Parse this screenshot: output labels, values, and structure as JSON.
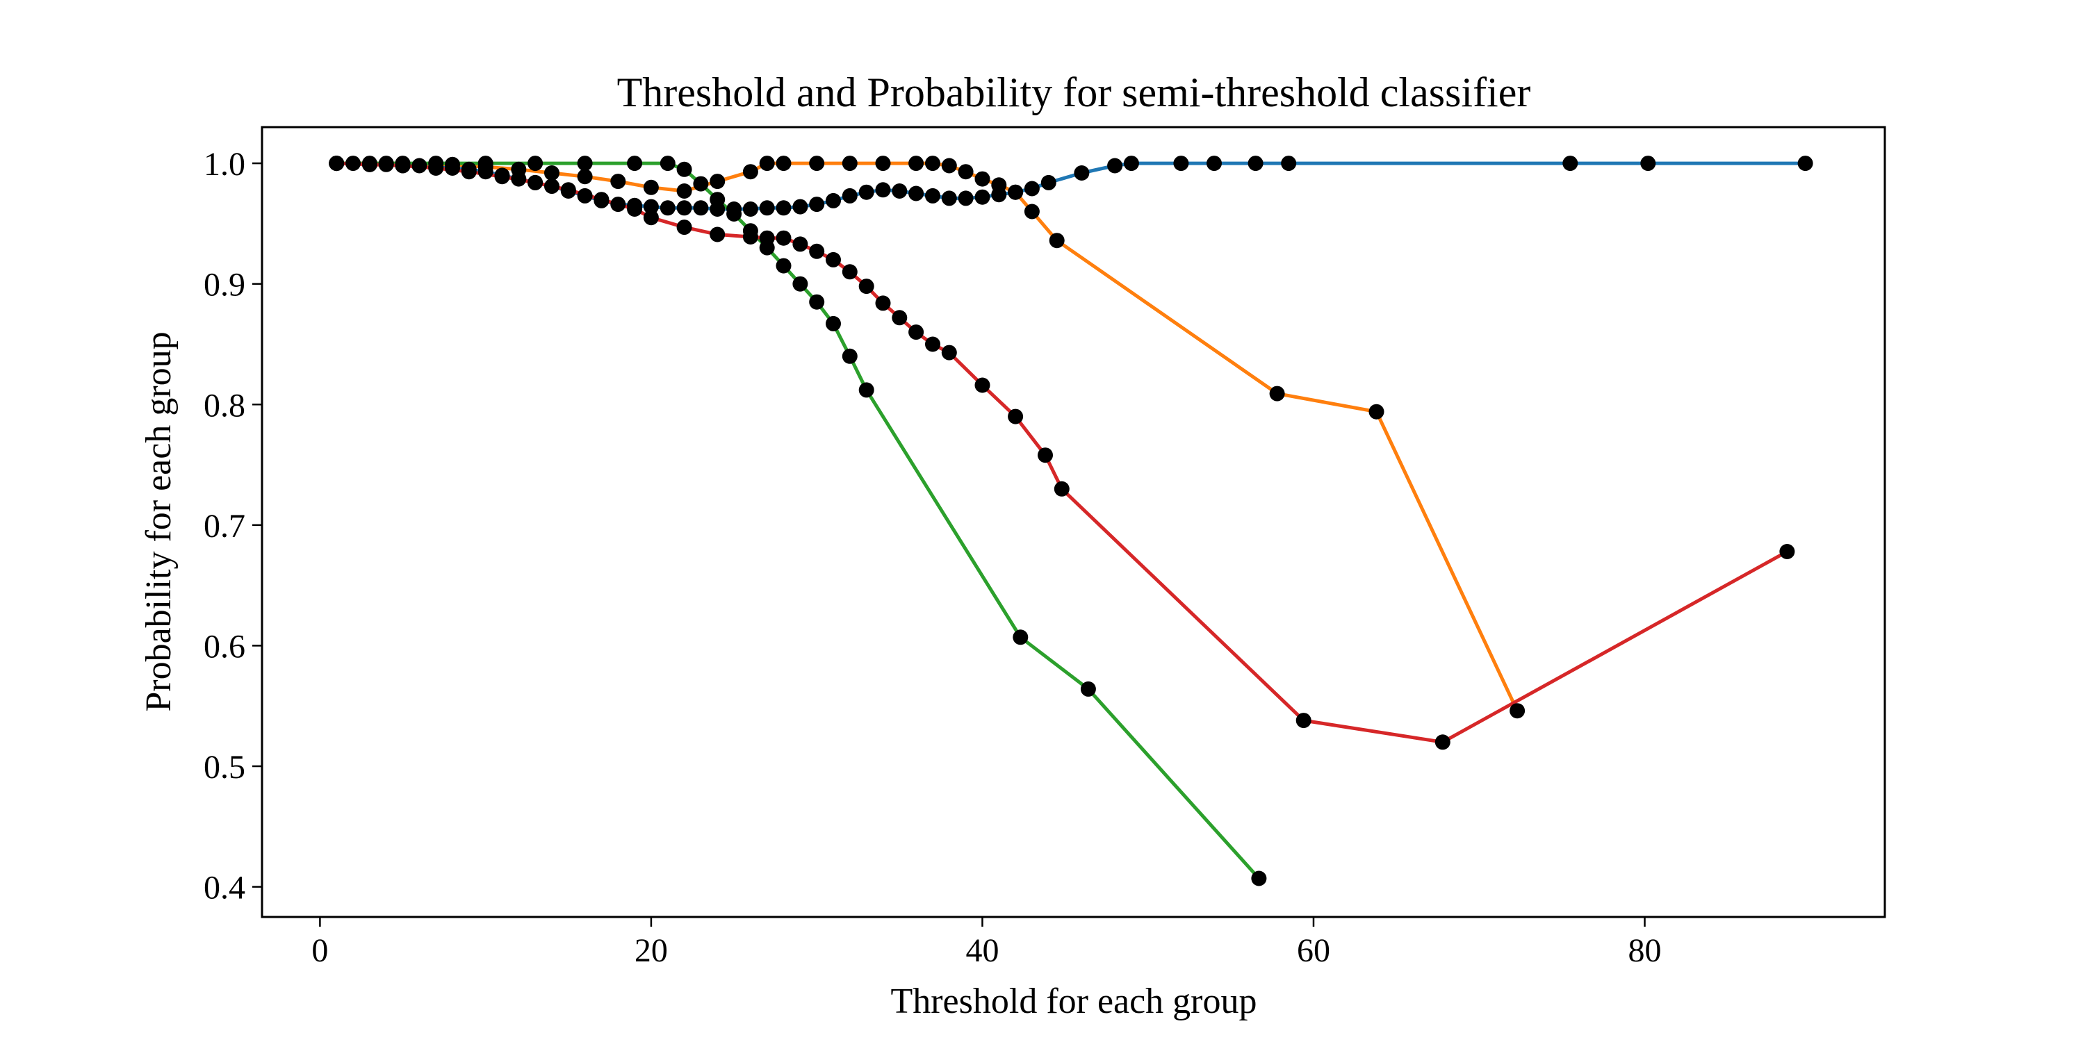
{
  "chart_data": {
    "type": "line",
    "title": "Threshold and Probability for semi-threshold classifier",
    "xlabel": "Threshold for each group",
    "ylabel": "Probability for each group",
    "xlim": [
      -3.5,
      94.5
    ],
    "ylim": [
      0.375,
      1.03
    ],
    "xticks": [
      0,
      20,
      40,
      60,
      80
    ],
    "yticks": [
      0.4,
      0.5,
      0.6,
      0.7,
      0.8,
      0.9,
      1.0
    ],
    "xtick_labels": [
      "0",
      "20",
      "40",
      "60",
      "80"
    ],
    "ytick_labels": [
      "0.4",
      "0.5",
      "0.6",
      "0.7",
      "0.8",
      "0.9",
      "1.0"
    ],
    "grid": false,
    "legend": "none",
    "marker": {
      "color": "#000000",
      "style": "circle"
    },
    "series": [
      {
        "color": "#1f77b4",
        "x": [
          1,
          2,
          3,
          4,
          5,
          6,
          7,
          8,
          9,
          10,
          11,
          12,
          13,
          14,
          15,
          16,
          17,
          18,
          19,
          20,
          21,
          22,
          23,
          24,
          25,
          26,
          27,
          28,
          29,
          30,
          31,
          32,
          33,
          34,
          35,
          36,
          37,
          38,
          39,
          40,
          41,
          42,
          43,
          44,
          46,
          48,
          49,
          52,
          54,
          56.5,
          58.5,
          75.5,
          80.2,
          89.7
        ],
        "y": [
          1.0,
          1.0,
          0.999,
          0.999,
          0.998,
          0.998,
          0.997,
          0.996,
          0.995,
          0.993,
          0.99,
          0.987,
          0.984,
          0.981,
          0.977,
          0.973,
          0.969,
          0.966,
          0.965,
          0.964,
          0.963,
          0.963,
          0.963,
          0.962,
          0.962,
          0.962,
          0.963,
          0.963,
          0.964,
          0.966,
          0.969,
          0.973,
          0.976,
          0.978,
          0.977,
          0.975,
          0.973,
          0.971,
          0.971,
          0.972,
          0.974,
          0.976,
          0.979,
          0.984,
          0.992,
          0.998,
          1.0,
          1.0,
          1.0,
          1.0,
          1.0,
          1.0,
          1.0,
          1.0
        ]
      },
      {
        "color": "#ff7f0e",
        "x": [
          1,
          3,
          5,
          8,
          10,
          12,
          14,
          16,
          18,
          20,
          22,
          24,
          26,
          27,
          28,
          30,
          32,
          34,
          36,
          37,
          38,
          39,
          40,
          41,
          42,
          43,
          44.5,
          57.8,
          63.8,
          72.3
        ],
        "y": [
          1.0,
          1.0,
          1.0,
          0.999,
          0.997,
          0.995,
          0.992,
          0.989,
          0.985,
          0.98,
          0.977,
          0.985,
          0.993,
          1.0,
          1.0,
          1.0,
          1.0,
          1.0,
          1.0,
          1.0,
          0.998,
          0.993,
          0.987,
          0.982,
          0.976,
          0.96,
          0.936,
          0.809,
          0.794,
          0.546
        ]
      },
      {
        "color": "#2ca02c",
        "x": [
          1,
          4,
          7,
          10,
          13,
          16,
          19,
          21,
          22,
          23,
          24,
          25,
          26,
          27,
          28,
          29,
          30,
          31,
          32,
          33,
          42.3,
          46.4,
          56.7
        ],
        "y": [
          1.0,
          1.0,
          1.0,
          1.0,
          1.0,
          1.0,
          1.0,
          1.0,
          0.995,
          0.983,
          0.97,
          0.958,
          0.944,
          0.93,
          0.915,
          0.9,
          0.885,
          0.867,
          0.84,
          0.812,
          0.607,
          0.564,
          0.407
        ]
      },
      {
        "color": "#d62728",
        "x": [
          1,
          3,
          5,
          7,
          9,
          11,
          13,
          15,
          17,
          19,
          20,
          22,
          24,
          26,
          27,
          28,
          29,
          30,
          31,
          32,
          33,
          34,
          35,
          36,
          37,
          38,
          40,
          42,
          43.8,
          44.8,
          59.4,
          67.8,
          88.6
        ],
        "y": [
          1.0,
          0.999,
          0.998,
          0.996,
          0.993,
          0.989,
          0.984,
          0.978,
          0.97,
          0.962,
          0.955,
          0.947,
          0.941,
          0.939,
          0.938,
          0.938,
          0.933,
          0.927,
          0.92,
          0.91,
          0.898,
          0.884,
          0.872,
          0.86,
          0.85,
          0.843,
          0.816,
          0.79,
          0.758,
          0.73,
          0.538,
          0.52,
          0.678
        ]
      }
    ]
  }
}
